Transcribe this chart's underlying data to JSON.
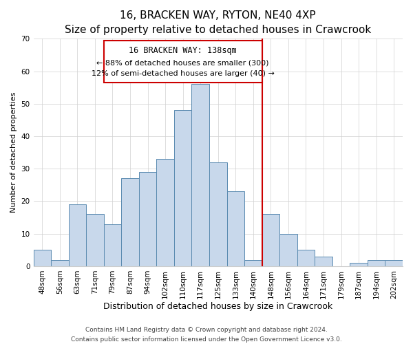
{
  "title": "16, BRACKEN WAY, RYTON, NE40 4XP",
  "subtitle": "Size of property relative to detached houses in Crawcrook",
  "xlabel": "Distribution of detached houses by size in Crawcrook",
  "ylabel": "Number of detached properties",
  "bar_labels": [
    "48sqm",
    "56sqm",
    "63sqm",
    "71sqm",
    "79sqm",
    "87sqm",
    "94sqm",
    "102sqm",
    "110sqm",
    "117sqm",
    "125sqm",
    "133sqm",
    "140sqm",
    "148sqm",
    "156sqm",
    "164sqm",
    "171sqm",
    "179sqm",
    "187sqm",
    "194sqm",
    "202sqm"
  ],
  "bar_values": [
    5,
    2,
    19,
    16,
    13,
    27,
    29,
    33,
    48,
    56,
    32,
    23,
    2,
    16,
    10,
    5,
    3,
    0,
    1,
    2,
    2
  ],
  "bar_color": "#c8d8eb",
  "bar_edge_color": "#5a8ab0",
  "ylim": [
    0,
    70
  ],
  "yticks": [
    0,
    10,
    20,
    30,
    40,
    50,
    60,
    70
  ],
  "vline_index": 13,
  "vline_color": "#cc0000",
  "annotation_title": "16 BRACKEN WAY: 138sqm",
  "annotation_line1": "← 88% of detached houses are smaller (300)",
  "annotation_line2": "12% of semi-detached houses are larger (40) →",
  "annotation_box_color": "#ffffff",
  "annotation_box_edge": "#cc0000",
  "footer1": "Contains HM Land Registry data © Crown copyright and database right 2024.",
  "footer2": "Contains public sector information licensed under the Open Government Licence v3.0.",
  "title_fontsize": 11,
  "subtitle_fontsize": 9.5,
  "xlabel_fontsize": 9,
  "ylabel_fontsize": 8,
  "tick_fontsize": 7.5,
  "footer_fontsize": 6.5
}
